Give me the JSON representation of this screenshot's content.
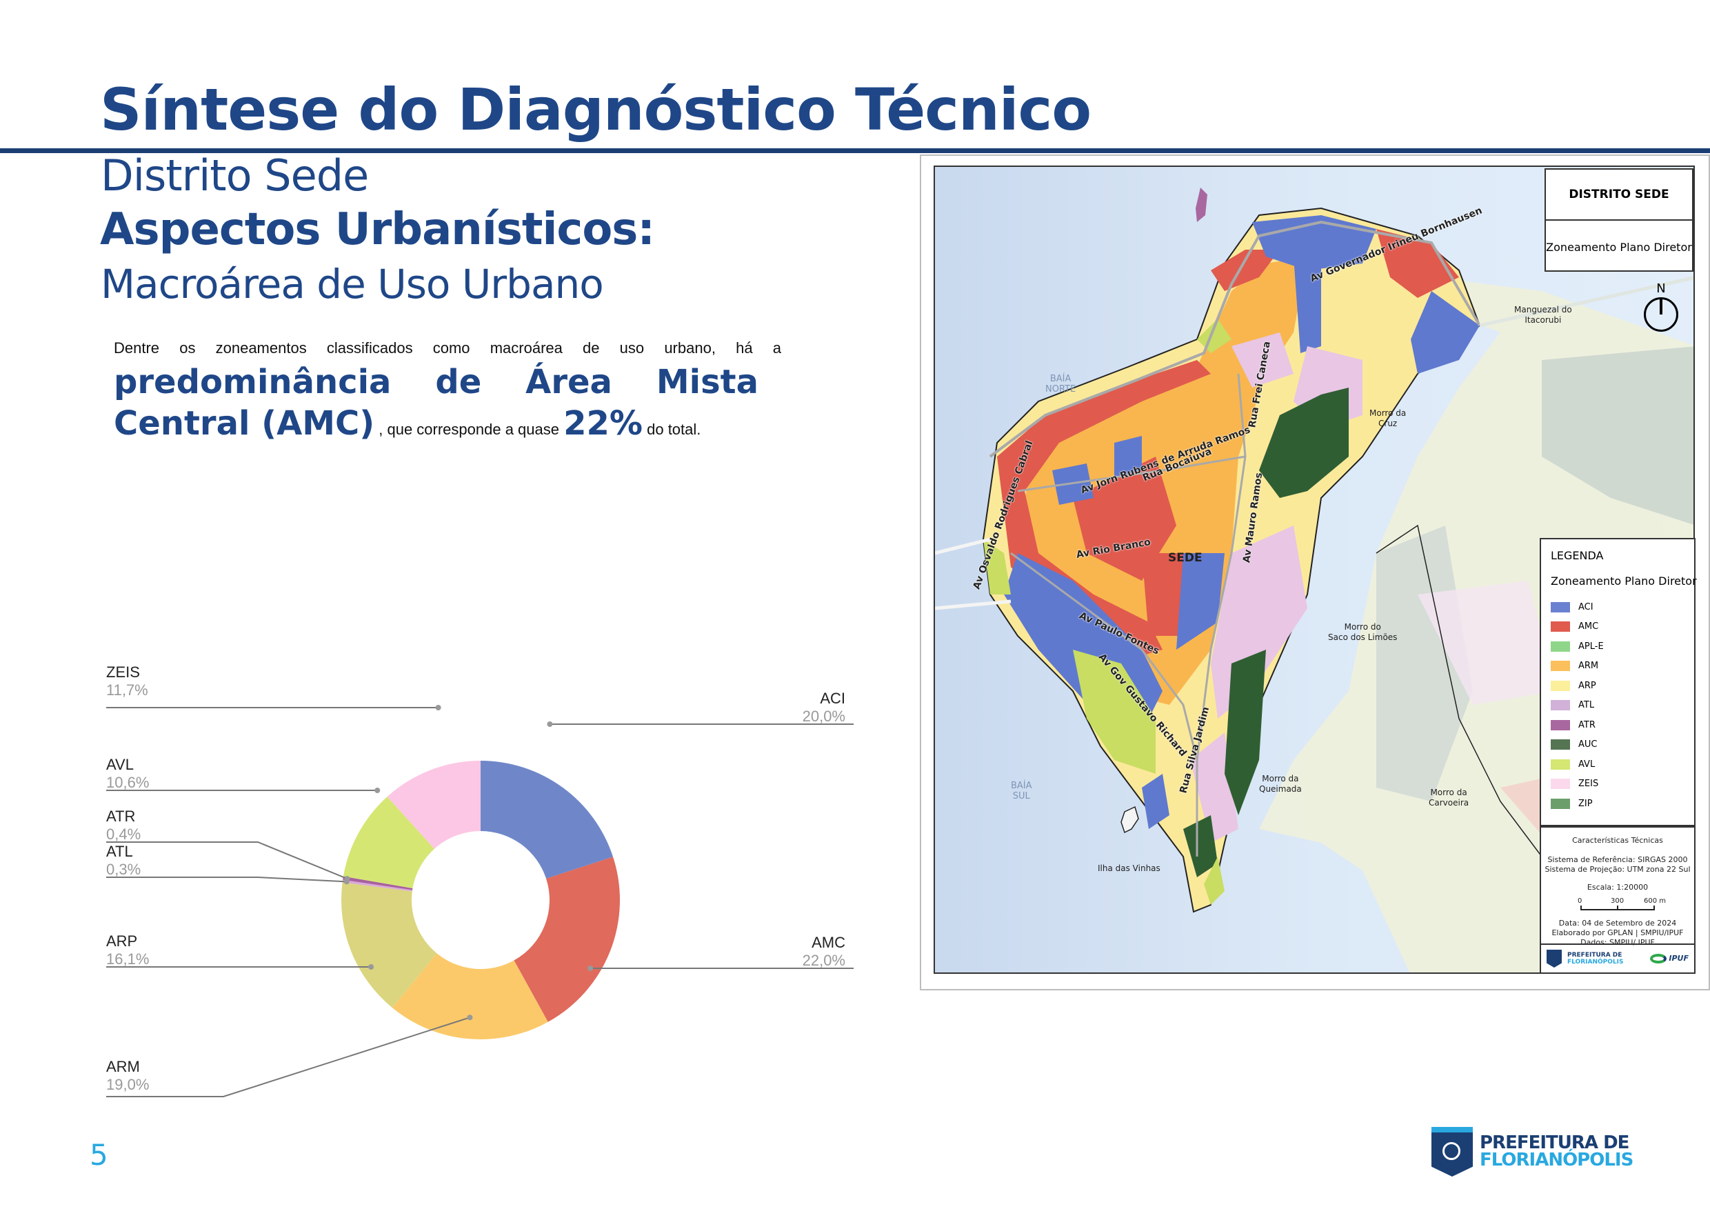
{
  "header": {
    "title": "Síntese do Diagnóstico Técnico",
    "subtitle_district": "Distrito Sede",
    "subtitle_section": "Aspectos Urbanísticos:",
    "subtitle_topic": "Macroárea de Uso Urbano"
  },
  "paragraph": {
    "line1": "Dentre os zoneamentos classificados como macroárea de uso urbano, há a",
    "line2": "predominância de Área Mista",
    "line3_bold": "Central (AMC)",
    "line3_small": " , que corresponde a quase ",
    "line3_pct": "22%",
    "line3_end": " do total."
  },
  "chart_data": {
    "type": "pie",
    "subtype": "donut",
    "title": "",
    "categories": [
      "ACI",
      "AMC",
      "ARM",
      "ARP",
      "ATL",
      "ATR",
      "AVL",
      "ZEIS"
    ],
    "values": [
      20.0,
      22.0,
      19.0,
      16.1,
      0.3,
      0.4,
      10.6,
      11.7
    ],
    "labels": [
      "20,0%",
      "22,0%",
      "19,0%",
      "16,1%",
      "0,3%",
      "0,4%",
      "10,6%",
      "11,7%"
    ],
    "colors": [
      "#6f87c9",
      "#e06a5b",
      "#fbc96a",
      "#dbd57f",
      "#d9a9d9",
      "#a8609e",
      "#d6e673",
      "#fcc7e4"
    ],
    "order": "clockwise from 12 o'clock",
    "legend_position": "outside labels with leader lines"
  },
  "map": {
    "title": "DISTRITO SEDE",
    "subtitle": "Zoneamento Plano Diretor",
    "north": "N",
    "water_labels": [
      "BAÍA NORTE",
      "BAÍA SUL"
    ],
    "place_labels": [
      "Manguezal do Itacorubi",
      "Morro da Cruz",
      "Morro do Saco dos Limões",
      "Morro da Queimada",
      "Morro da Carvoeira",
      "Ilha das Vinhas",
      "SEDE"
    ],
    "streets": [
      "Av Governador Irineu Bornhausen",
      "Rua Frei Caneca",
      "Av Jorn Rubens de Arruda Ramos",
      "Rua Bocaiuva",
      "Av Mauro Ramos",
      "Av Osvaldo Rodrigues Cabral",
      "Av Rio Branco",
      "Av Paulo Fontes",
      "Av Gov Gustavo Richard",
      "Rua Silva Jardim"
    ],
    "legend": {
      "title": "LEGENDA",
      "subtitle": "Zoneamento Plano Diretor",
      "items": [
        {
          "label": "ACI",
          "color": "#6a80d0"
        },
        {
          "label": "AMC",
          "color": "#e05a4e"
        },
        {
          "label": "APL-E",
          "color": "#8fd68a"
        },
        {
          "label": "ARM",
          "color": "#fbbf5c"
        },
        {
          "label": "ARP",
          "color": "#fbef9b"
        },
        {
          "label": "ATL",
          "color": "#d1b1d8"
        },
        {
          "label": "ATR",
          "color": "#a9679f"
        },
        {
          "label": "AUC",
          "color": "#557552"
        },
        {
          "label": "AVL",
          "color": "#d5e672"
        },
        {
          "label": "ZEIS",
          "color": "#fcd8ec"
        },
        {
          "label": "ZIP",
          "color": "#6c9e6c"
        }
      ]
    },
    "technical": {
      "heading": "Características Técnicas",
      "reference": "Sistema de Referência: SIRGAS 2000",
      "projection": "Sistema de Projeção: UTM zona 22 Sul",
      "scale": "Escala: 1:20000",
      "scale_ticks": [
        "0",
        "300",
        "600 m"
      ],
      "date": "Data: 04 de Setembro de 2024",
      "author": "Elaborado por GPLAN | SMPIU/IPUF",
      "data_source": "Dados: SMPIU/ IPUF",
      "logo1_line1": "PREFEITURA DE",
      "logo1_line2": "FLORIANÓPOLIS",
      "logo2": "IPUF"
    }
  },
  "footer": {
    "page_number": "5",
    "brand_line1": "PREFEITURA DE",
    "brand_line2": "FLORIANÓPOLIS"
  }
}
